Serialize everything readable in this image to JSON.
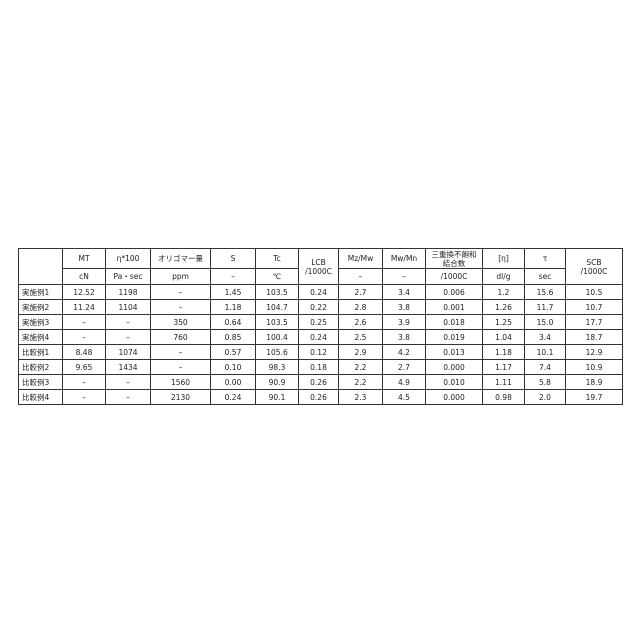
{
  "table": {
    "header_top": [
      "",
      "MT",
      "η*100",
      "オリゴマー量",
      "S",
      "Tc",
      "LCB\n/1000C",
      "Mz/Mw",
      "Mw/Mn",
      "三重換不飽和\n結合数",
      "[η]",
      "τ",
      "SCB\n/1000C"
    ],
    "header_units": [
      "cN",
      "Pa・sec",
      "ppm",
      "–",
      "℃",
      "–",
      "–",
      "/1000C",
      "dl/g",
      "sec"
    ],
    "rows": [
      [
        "実施例1",
        "12.52",
        "1198",
        "–",
        "1.45",
        "103.5",
        "0.24",
        "2.7",
        "3.4",
        "0.006",
        "1.2",
        "15.6",
        "10.5"
      ],
      [
        "実施例2",
        "11.24",
        "1104",
        "–",
        "1.18",
        "104.7",
        "0.22",
        "2.8",
        "3.8",
        "0.001",
        "1.26",
        "11.7",
        "10.7"
      ],
      [
        "実施例3",
        "–",
        "–",
        "350",
        "0.64",
        "103.5",
        "0.25",
        "2.6",
        "3.9",
        "0.018",
        "1.25",
        "15.0",
        "17.7"
      ],
      [
        "実施例4",
        "–",
        "–",
        "760",
        "0.85",
        "100.4",
        "0.24",
        "2.5",
        "3.8",
        "0.019",
        "1.04",
        "3.4",
        "18.7"
      ],
      [
        "比較例1",
        "8.48",
        "1074",
        "–",
        "0.57",
        "105.6",
        "0.12",
        "2.9",
        "4.2",
        "0.013",
        "1.18",
        "10.1",
        "12.9"
      ],
      [
        "比較例2",
        "9.65",
        "1434",
        "–",
        "0.10",
        "98.3",
        "0.18",
        "2.2",
        "2.7",
        "0.000",
        "1.17",
        "7.4",
        "10.9"
      ],
      [
        "比較例3",
        "–",
        "–",
        "1560",
        "0.00",
        "90.9",
        "0.26",
        "2.2",
        "4.9",
        "0.010",
        "1.11",
        "5.8",
        "18.9"
      ],
      [
        "比較例4",
        "–",
        "–",
        "2130",
        "0.24",
        "90.1",
        "0.26",
        "2.3",
        "4.5",
        "0.000",
        "0.98",
        "2.0",
        "19.7"
      ]
    ]
  }
}
